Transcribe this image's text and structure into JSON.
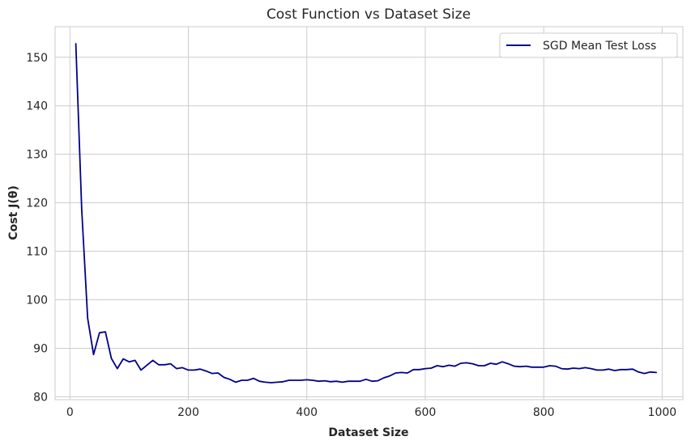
{
  "chart_data": {
    "type": "line",
    "title": "Cost Function vs Dataset Size",
    "xlabel": "Dataset Size",
    "ylabel": "Cost J(θ)",
    "xlim": [
      -25,
      1035
    ],
    "ylim": [
      79.4,
      156.3
    ],
    "xticks": [
      0,
      200,
      400,
      600,
      800,
      1000
    ],
    "yticks": [
      80,
      90,
      100,
      110,
      120,
      130,
      140,
      150
    ],
    "grid": true,
    "legend_position": "top-right",
    "series": [
      {
        "name": "SGD Mean Test Loss",
        "color": "#00008b",
        "x": [
          10,
          20,
          30,
          40,
          50,
          60,
          70,
          80,
          90,
          100,
          110,
          120,
          130,
          140,
          150,
          160,
          170,
          180,
          190,
          200,
          210,
          220,
          230,
          240,
          250,
          260,
          270,
          280,
          290,
          300,
          310,
          320,
          330,
          340,
          350,
          360,
          370,
          380,
          390,
          400,
          410,
          420,
          430,
          440,
          450,
          460,
          470,
          480,
          490,
          500,
          510,
          520,
          530,
          540,
          550,
          560,
          570,
          580,
          590,
          600,
          610,
          620,
          630,
          640,
          650,
          660,
          670,
          680,
          690,
          700,
          710,
          720,
          730,
          740,
          750,
          760,
          770,
          780,
          790,
          800,
          810,
          820,
          830,
          840,
          850,
          860,
          870,
          880,
          890,
          900,
          910,
          920,
          930,
          940,
          950,
          960,
          970,
          980,
          990
        ],
        "values": [
          152.8,
          118.5,
          96.2,
          88.7,
          93.2,
          93.4,
          87.9,
          85.8,
          87.8,
          87.2,
          87.5,
          85.5,
          86.5,
          87.5,
          86.6,
          86.6,
          86.8,
          85.8,
          86.0,
          85.5,
          85.5,
          85.7,
          85.3,
          84.8,
          84.9,
          84.0,
          83.6,
          83.0,
          83.4,
          83.4,
          83.8,
          83.2,
          83.0,
          82.9,
          83.0,
          83.1,
          83.4,
          83.4,
          83.4,
          83.5,
          83.4,
          83.2,
          83.3,
          83.1,
          83.2,
          83.0,
          83.2,
          83.2,
          83.2,
          83.6,
          83.2,
          83.3,
          83.9,
          84.3,
          84.9,
          85.0,
          84.9,
          85.6,
          85.6,
          85.8,
          85.9,
          86.4,
          86.2,
          86.5,
          86.3,
          86.9,
          87.0,
          86.8,
          86.4,
          86.4,
          86.9,
          86.7,
          87.2,
          86.8,
          86.3,
          86.2,
          86.3,
          86.1,
          86.1,
          86.1,
          86.4,
          86.3,
          85.8,
          85.7,
          85.9,
          85.8,
          86.0,
          85.8,
          85.5,
          85.5,
          85.7,
          85.4,
          85.6,
          85.6,
          85.7,
          85.1,
          84.8,
          85.1,
          85.0
        ]
      }
    ]
  }
}
